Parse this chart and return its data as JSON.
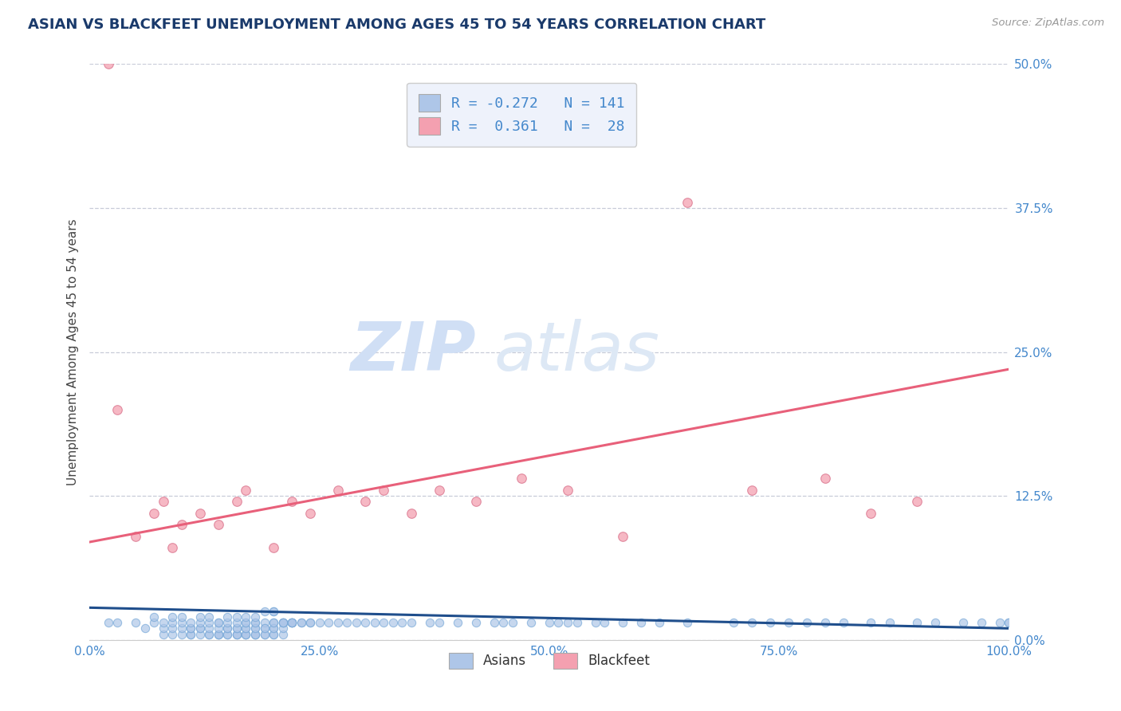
{
  "title": "ASIAN VS BLACKFEET UNEMPLOYMENT AMONG AGES 45 TO 54 YEARS CORRELATION CHART",
  "source_text": "Source: ZipAtlas.com",
  "ylabel": "Unemployment Among Ages 45 to 54 years",
  "xlim": [
    0,
    100
  ],
  "ylim": [
    0,
    50
  ],
  "xticks": [
    0,
    25,
    50,
    75,
    100
  ],
  "xticklabels": [
    "0.0%",
    "25.0%",
    "50.0%",
    "75.0%",
    "100.0%"
  ],
  "yticks": [
    0,
    12.5,
    25,
    37.5,
    50
  ],
  "yticklabels": [
    "0.0%",
    "12.5%",
    "25.0%",
    "37.5%",
    "50.0%"
  ],
  "asian_R": -0.272,
  "asian_N": 141,
  "blackfeet_R": 0.361,
  "blackfeet_N": 28,
  "asian_color": "#aec6e8",
  "blackfeet_color": "#f4a0b0",
  "asian_line_color": "#1f4e8c",
  "blackfeet_line_color": "#e8607a",
  "legend_box_color": "#eef2fb",
  "watermark_zip": "ZIP",
  "watermark_atlas": "atlas",
  "watermark_color": "#d0dff5",
  "grid_color": "#c8ccd8",
  "title_color": "#1a3a6b",
  "axis_tick_color": "#4488cc",
  "background_color": "#ffffff",
  "asian_scatter_x": [
    2,
    3,
    5,
    6,
    7,
    7,
    8,
    8,
    8,
    9,
    9,
    9,
    9,
    10,
    10,
    10,
    10,
    11,
    11,
    11,
    11,
    11,
    12,
    12,
    12,
    12,
    12,
    13,
    13,
    13,
    13,
    13,
    14,
    14,
    14,
    14,
    14,
    14,
    15,
    15,
    15,
    15,
    15,
    15,
    16,
    16,
    16,
    16,
    16,
    16,
    16,
    17,
    17,
    17,
    17,
    17,
    17,
    17,
    17,
    18,
    18,
    18,
    18,
    18,
    18,
    18,
    18,
    19,
    19,
    19,
    19,
    19,
    19,
    20,
    20,
    20,
    20,
    20,
    20,
    20,
    20,
    21,
    21,
    21,
    21,
    21,
    21,
    22,
    22,
    22,
    22,
    22,
    23,
    23,
    24,
    24,
    25,
    26,
    27,
    28,
    29,
    30,
    31,
    32,
    33,
    34,
    35,
    37,
    38,
    40,
    42,
    44,
    45,
    46,
    48,
    50,
    51,
    52,
    53,
    55,
    56,
    58,
    60,
    62,
    65,
    70,
    72,
    74,
    76,
    78,
    80,
    82,
    85,
    87,
    90,
    92,
    95,
    97,
    99,
    100,
    100
  ],
  "asian_scatter_y": [
    1.5,
    1.5,
    1.5,
    1.0,
    1.5,
    2.0,
    0.5,
    1.0,
    1.5,
    0.5,
    1.0,
    1.5,
    2.0,
    0.5,
    1.0,
    1.5,
    2.0,
    0.5,
    0.5,
    1.0,
    1.0,
    1.5,
    0.5,
    1.0,
    1.0,
    1.5,
    2.0,
    0.5,
    0.5,
    1.0,
    1.5,
    2.0,
    0.5,
    0.5,
    0.5,
    1.0,
    1.5,
    1.5,
    0.5,
    0.5,
    1.0,
    1.0,
    1.5,
    2.0,
    0.5,
    0.5,
    0.5,
    1.0,
    1.0,
    1.5,
    2.0,
    0.5,
    0.5,
    0.5,
    1.0,
    1.0,
    1.5,
    1.5,
    2.0,
    0.5,
    0.5,
    1.0,
    1.5,
    0.5,
    1.0,
    1.5,
    2.0,
    0.5,
    1.0,
    1.5,
    2.5,
    0.5,
    1.0,
    0.5,
    1.0,
    1.5,
    2.5,
    0.5,
    1.0,
    1.5,
    2.5,
    1.5,
    0.5,
    1.0,
    1.5,
    1.5,
    1.5,
    1.5,
    1.5,
    1.5,
    1.5,
    1.5,
    1.5,
    1.5,
    1.5,
    1.5,
    1.5,
    1.5,
    1.5,
    1.5,
    1.5,
    1.5,
    1.5,
    1.5,
    1.5,
    1.5,
    1.5,
    1.5,
    1.5,
    1.5,
    1.5,
    1.5,
    1.5,
    1.5,
    1.5,
    1.5,
    1.5,
    1.5,
    1.5,
    1.5,
    1.5,
    1.5,
    1.5,
    1.5,
    1.5,
    1.5,
    1.5,
    1.5,
    1.5,
    1.5,
    1.5,
    1.5,
    1.5,
    1.5,
    1.5,
    1.5,
    1.5,
    1.5,
    1.5,
    1.5,
    1.5
  ],
  "blackfeet_scatter_x": [
    2,
    3,
    5,
    7,
    8,
    9,
    10,
    12,
    14,
    16,
    17,
    20,
    22,
    24,
    27,
    30,
    32,
    35,
    38,
    42,
    47,
    52,
    58,
    65,
    72,
    80,
    85,
    90
  ],
  "blackfeet_scatter_y": [
    50,
    20,
    9,
    11,
    12,
    8,
    10,
    11,
    10,
    12,
    13,
    8,
    12,
    11,
    13,
    12,
    13,
    11,
    13,
    12,
    14,
    13,
    9,
    38,
    13,
    14,
    11,
    12
  ],
  "asian_trend_x0": 0,
  "asian_trend_x1": 100,
  "asian_trend_y0": 2.8,
  "asian_trend_y1": 1.0,
  "blackfeet_trend_x0": 0,
  "blackfeet_trend_x1": 100,
  "blackfeet_trend_y0": 8.5,
  "blackfeet_trend_y1": 23.5
}
